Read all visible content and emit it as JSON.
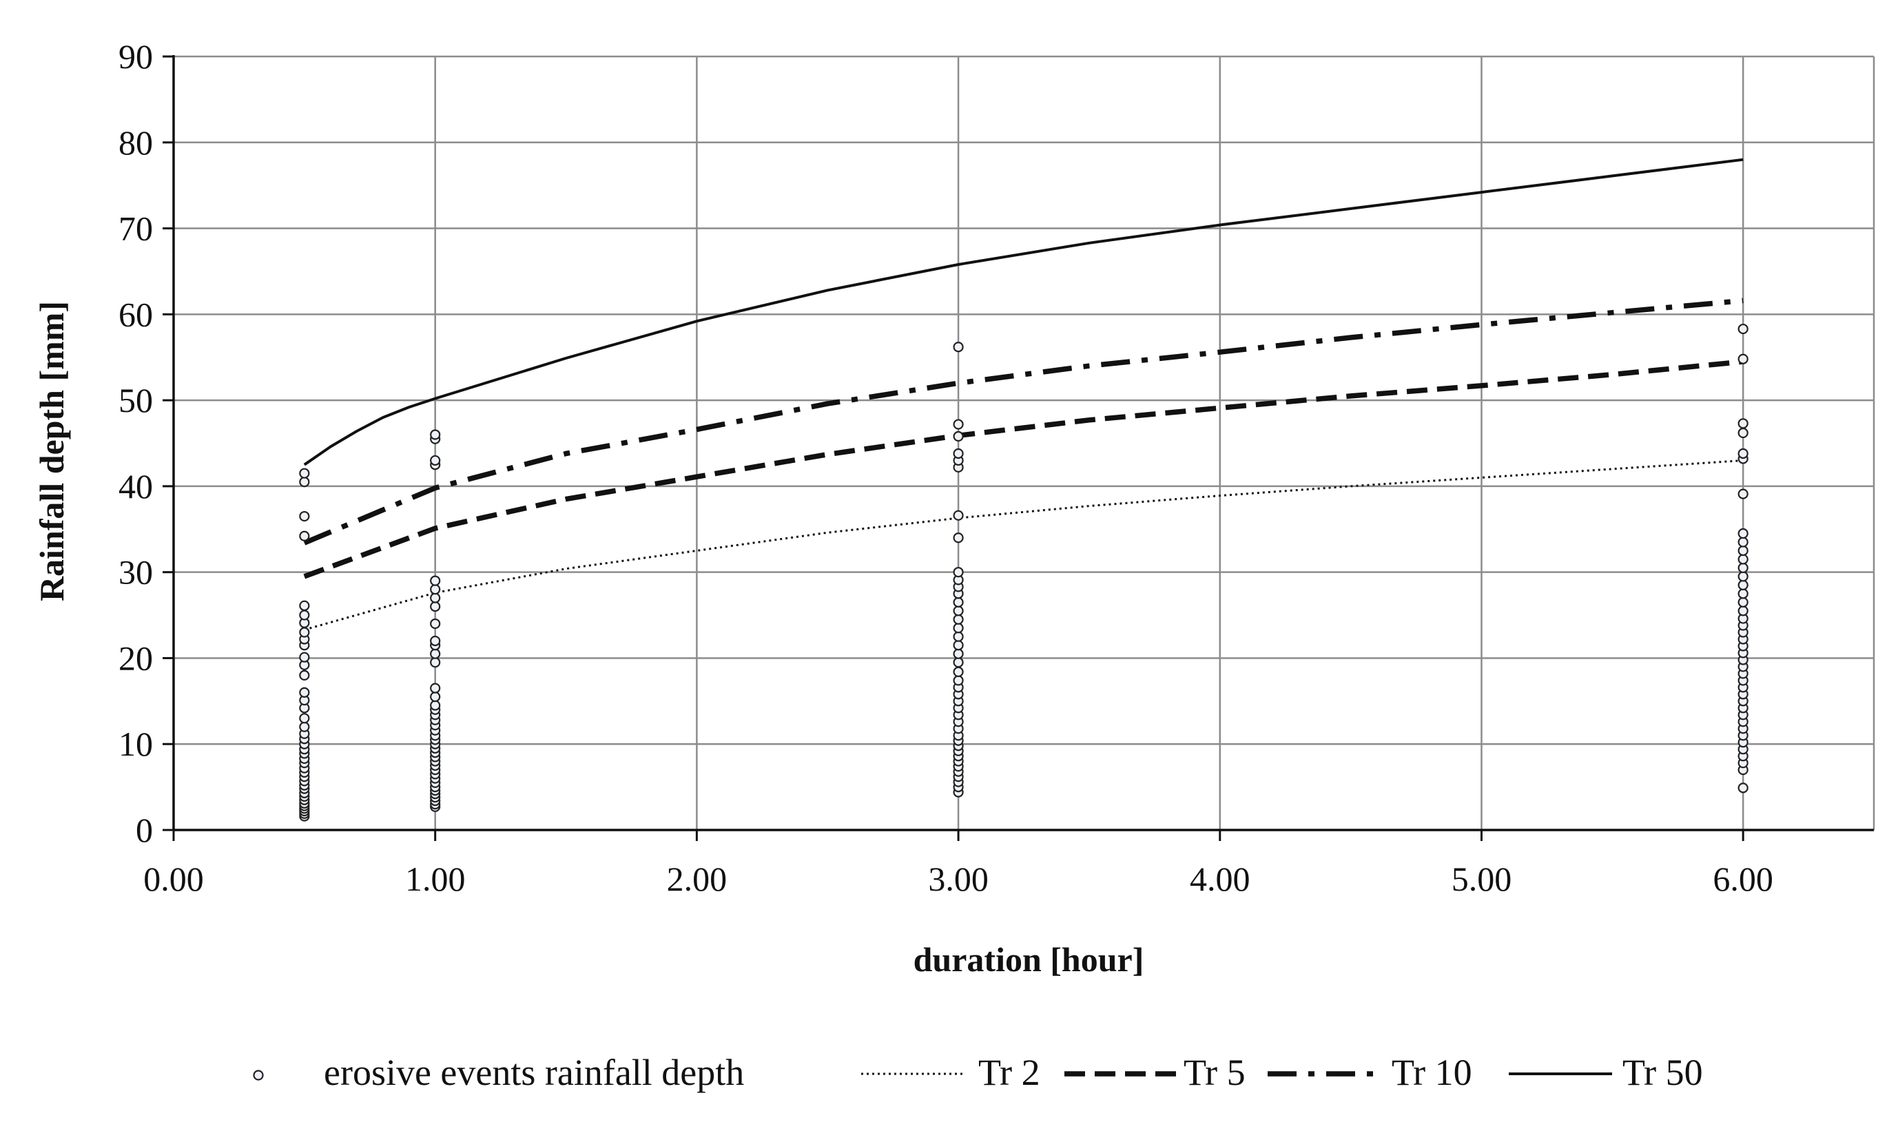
{
  "chart_data": {
    "type": "line",
    "title": "",
    "xlabel": "duration [hour]",
    "ylabel": "Rainfall depth [mm]",
    "xlim": [
      0,
      6.5
    ],
    "ylim": [
      0,
      90
    ],
    "x_ticks": [
      0,
      1,
      2,
      3,
      4,
      5,
      6
    ],
    "x_tick_labels": [
      "0.00",
      "1.00",
      "2.00",
      "3.00",
      "4.00",
      "5.00",
      "6.00"
    ],
    "y_ticks": [
      0,
      10,
      20,
      30,
      40,
      50,
      60,
      70,
      80,
      90
    ],
    "y_tick_labels": [
      "0",
      "10",
      "20",
      "30",
      "40",
      "50",
      "60",
      "70",
      "80",
      "90"
    ],
    "grid": true,
    "legend_position": "bottom",
    "series": [
      {
        "name": "Tr 2",
        "style": "dotted",
        "x": [
          0.5,
          1,
          1.5,
          2,
          2.5,
          3,
          3.5,
          4,
          4.5,
          5,
          5.5,
          6
        ],
        "values": [
          23.3,
          27.6,
          30.4,
          32.5,
          34.6,
          36.3,
          37.7,
          38.9,
          40.0,
          41.0,
          42.0,
          43.0
        ]
      },
      {
        "name": "Tr 5",
        "style": "dashed",
        "x": [
          0.5,
          1,
          1.5,
          2,
          2.5,
          3,
          3.5,
          4,
          4.5,
          5,
          5.5,
          6
        ],
        "values": [
          29.5,
          35.1,
          38.5,
          41.1,
          43.7,
          45.9,
          47.7,
          49.1,
          50.5,
          51.7,
          53.0,
          54.5
        ]
      },
      {
        "name": "Tr 10",
        "style": "dashdot",
        "x": [
          0.5,
          1,
          1.5,
          2,
          2.5,
          3,
          3.5,
          4,
          4.5,
          5,
          5.5,
          6
        ],
        "values": [
          33.4,
          39.8,
          43.8,
          46.6,
          49.6,
          52.0,
          54.0,
          55.6,
          57.3,
          58.8,
          60.2,
          61.6
        ]
      },
      {
        "name": "Tr 50",
        "style": "solid",
        "x": [
          0.5,
          0.6,
          0.7,
          0.8,
          0.9,
          1,
          1.5,
          2,
          2.5,
          3,
          3.5,
          4,
          4.5,
          5,
          5.5,
          6
        ],
        "values": [
          42.5,
          44.6,
          46.4,
          48.0,
          49.2,
          50.2,
          54.9,
          59.2,
          62.8,
          65.8,
          68.3,
          70.4,
          72.3,
          74.2,
          76.1,
          78.0
        ]
      }
    ],
    "scatter": {
      "name": "erosive events rainfall depth",
      "points": [
        {
          "x": 0.5,
          "values": [
            1.6,
            1.9,
            2.2,
            2.5,
            2.8,
            3.1,
            3.5,
            3.9,
            4.3,
            4.8,
            5.2,
            5.7,
            6.2,
            6.7,
            7.2,
            7.8,
            8.3,
            8.9,
            9.4,
            10.0,
            10.6,
            11.2,
            12.0,
            13.0,
            14.2,
            15.1,
            16.0,
            18.0,
            19.2,
            20.1,
            21.5,
            22.2,
            23.0,
            24.1,
            25.0,
            26.1,
            34.2,
            36.5,
            40.5,
            41.5
          ]
        },
        {
          "x": 1,
          "values": [
            2.7,
            3.0,
            3.4,
            3.8,
            4.2,
            4.6,
            5.0,
            5.5,
            6.0,
            6.5,
            7.0,
            7.5,
            8.0,
            8.5,
            9.0,
            9.5,
            10.0,
            10.5,
            11.0,
            11.6,
            12.2,
            12.8,
            13.4,
            14.0,
            14.5,
            15.5,
            16.5,
            19.5,
            20.5,
            21.5,
            22.0,
            24.0,
            26.0,
            27.0,
            28.0,
            29.0,
            42.5,
            43.0,
            45.5,
            46.0
          ]
        },
        {
          "x": 3,
          "values": [
            4.4,
            5.0,
            5.6,
            6.2,
            6.8,
            7.4,
            8.0,
            8.6,
            9.2,
            9.8,
            10.4,
            11.0,
            11.8,
            12.6,
            13.4,
            14.2,
            15.0,
            15.8,
            16.6,
            17.4,
            18.4,
            19.5,
            20.5,
            21.5,
            22.5,
            23.5,
            24.5,
            25.5,
            26.5,
            27.5,
            28.3,
            29.1,
            30.0,
            34.0,
            36.6,
            42.2,
            43.0,
            43.8,
            45.8,
            47.2,
            56.2
          ]
        },
        {
          "x": 6,
          "values": [
            4.9,
            7.0,
            7.8,
            8.6,
            9.4,
            10.2,
            11.0,
            11.8,
            12.6,
            13.4,
            14.2,
            15.0,
            15.8,
            16.6,
            17.4,
            18.2,
            19.0,
            19.8,
            20.6,
            21.4,
            22.2,
            23.0,
            23.8,
            24.6,
            25.5,
            26.5,
            27.5,
            28.5,
            29.5,
            30.5,
            31.5,
            32.5,
            33.5,
            34.5,
            39.1,
            43.2,
            43.8,
            46.2,
            47.3,
            54.8,
            58.3
          ]
        }
      ]
    },
    "legend": [
      {
        "label": "erosive events rainfall depth",
        "marker": "circle"
      },
      {
        "label": "Tr 2",
        "style": "dotted"
      },
      {
        "label": "Tr 5",
        "style": "dashed"
      },
      {
        "label": "Tr 10",
        "style": "dashdot"
      },
      {
        "label": "Tr 50",
        "style": "solid"
      }
    ]
  }
}
